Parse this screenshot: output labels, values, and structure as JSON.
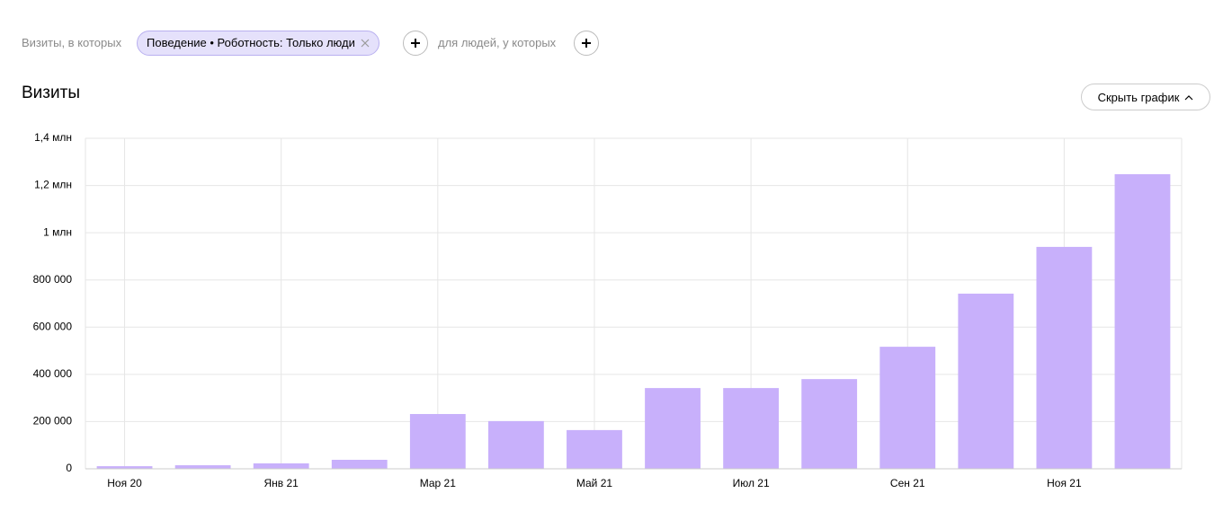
{
  "filters": {
    "prefix": "Визиты, в которых",
    "chip": "Поведение • Роботность: Только люди",
    "middle": "для людей, у которых"
  },
  "header": {
    "title": "Визиты",
    "toggle": "Скрыть график"
  },
  "chart_data": {
    "type": "bar",
    "categories": [
      "Ноя 20",
      null,
      "Янв 21",
      null,
      "Мар 21",
      null,
      "Май 21",
      null,
      "Июл 21",
      null,
      "Сен 21",
      null,
      "Ноя 21",
      null
    ],
    "values": [
      11000,
      15000,
      23000,
      38000,
      232000,
      202000,
      164000,
      342000,
      342000,
      380000,
      517000,
      742000,
      940000,
      1248000
    ],
    "color": "#c8b0fb",
    "ylim": [
      0,
      1400000
    ],
    "yticks": [
      0,
      {
        "value": 200000,
        "label": "200 000"
      },
      {
        "value": 400000,
        "label": "400 000"
      },
      {
        "value": 600000,
        "label": "600 000"
      },
      {
        "value": 800000,
        "label": "800 000"
      },
      {
        "value": 1000000,
        "label": "1 млн"
      },
      {
        "value": 1200000,
        "label": "1,2 млн"
      },
      {
        "value": 1400000,
        "label": "1,4 млн"
      }
    ],
    "grid": true
  }
}
